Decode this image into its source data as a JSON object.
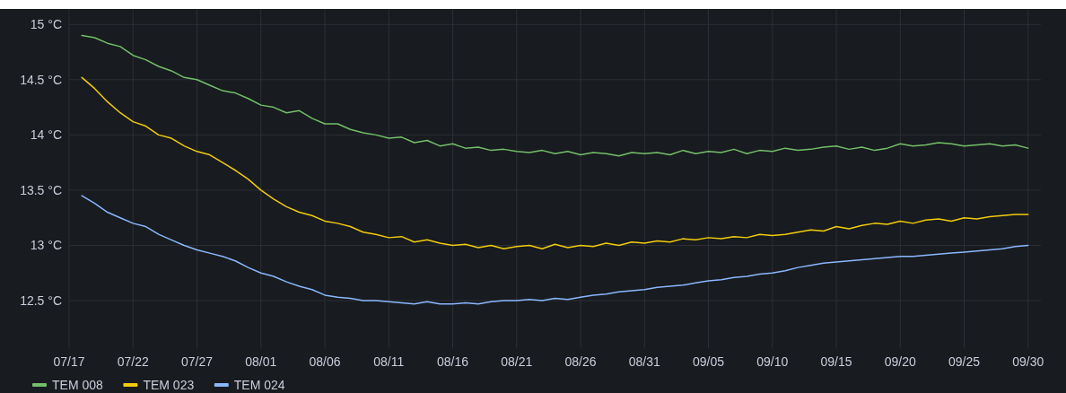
{
  "chart_data": {
    "type": "line",
    "x": [
      "--07-18",
      "--07-19",
      "--07-20",
      "--07-21",
      "--07-22",
      "--07-23",
      "--07-24",
      "--07-25",
      "--07-26",
      "--07-27",
      "--07-28",
      "--07-29",
      "--07-30",
      "--07-31",
      "--08-01",
      "--08-02",
      "--08-03",
      "--08-04",
      "--08-05",
      "--08-06",
      "--08-07",
      "--08-08",
      "--08-09",
      "--08-10",
      "--08-11",
      "--08-12",
      "--08-13",
      "--08-14",
      "--08-15",
      "--08-16",
      "--08-17",
      "--08-18",
      "--08-19",
      "--08-20",
      "--08-21",
      "--08-22",
      "--08-23",
      "--08-24",
      "--08-25",
      "--08-26",
      "--08-27",
      "--08-28",
      "--08-29",
      "--08-30",
      "--08-31",
      "--09-01",
      "--09-02",
      "--09-03",
      "--09-04",
      "--09-05",
      "--09-06",
      "--09-07",
      "--09-08",
      "--09-09",
      "--09-10",
      "--09-11",
      "--09-12",
      "--09-13",
      "--09-14",
      "--09-15",
      "--09-16",
      "--09-17",
      "--09-18",
      "--09-19",
      "--09-20",
      "--09-21",
      "--09-22",
      "--09-23",
      "--09-24",
      "--09-25",
      "--09-26",
      "--09-27",
      "--09-28",
      "--09-29",
      "--09-30"
    ],
    "series": [
      {
        "name": "TEM 008",
        "color": "#73bf69",
        "values": [
          14.9,
          14.88,
          14.83,
          14.8,
          14.72,
          14.68,
          14.62,
          14.58,
          14.52,
          14.5,
          14.45,
          14.4,
          14.38,
          14.33,
          14.27,
          14.25,
          14.2,
          14.22,
          14.15,
          14.1,
          14.1,
          14.05,
          14.02,
          14.0,
          13.97,
          13.98,
          13.93,
          13.95,
          13.9,
          13.92,
          13.88,
          13.89,
          13.86,
          13.87,
          13.85,
          13.84,
          13.86,
          13.83,
          13.85,
          13.82,
          13.84,
          13.83,
          13.81,
          13.84,
          13.83,
          13.84,
          13.82,
          13.86,
          13.83,
          13.85,
          13.84,
          13.87,
          13.83,
          13.86,
          13.85,
          13.88,
          13.86,
          13.87,
          13.89,
          13.9,
          13.87,
          13.89,
          13.86,
          13.88,
          13.92,
          13.9,
          13.91,
          13.93,
          13.92,
          13.9,
          13.91,
          13.92,
          13.9,
          13.91,
          13.88
        ]
      },
      {
        "name": "TEM 023",
        "color": "#f2cc0c",
        "values": [
          14.52,
          14.42,
          14.3,
          14.2,
          14.12,
          14.08,
          14.0,
          13.97,
          13.9,
          13.85,
          13.82,
          13.75,
          13.68,
          13.6,
          13.5,
          13.42,
          13.35,
          13.3,
          13.27,
          13.22,
          13.2,
          13.17,
          13.12,
          13.1,
          13.07,
          13.08,
          13.03,
          13.05,
          13.02,
          13.0,
          13.01,
          12.98,
          13.0,
          12.97,
          12.99,
          13.0,
          12.97,
          13.01,
          12.98,
          13.0,
          12.99,
          13.02,
          13.0,
          13.03,
          13.02,
          13.04,
          13.03,
          13.06,
          13.05,
          13.07,
          13.06,
          13.08,
          13.07,
          13.1,
          13.09,
          13.1,
          13.12,
          13.14,
          13.13,
          13.17,
          13.15,
          13.18,
          13.2,
          13.19,
          13.22,
          13.2,
          13.23,
          13.24,
          13.22,
          13.25,
          13.24,
          13.26,
          13.27,
          13.28,
          13.28
        ]
      },
      {
        "name": "TEM 024",
        "color": "#8ab8ff",
        "values": [
          13.45,
          13.38,
          13.3,
          13.25,
          13.2,
          13.17,
          13.1,
          13.05,
          13.0,
          12.96,
          12.93,
          12.9,
          12.86,
          12.8,
          12.75,
          12.72,
          12.67,
          12.63,
          12.6,
          12.55,
          12.53,
          12.52,
          12.5,
          12.5,
          12.49,
          12.48,
          12.47,
          12.49,
          12.47,
          12.47,
          12.48,
          12.47,
          12.49,
          12.5,
          12.5,
          12.51,
          12.5,
          12.52,
          12.51,
          12.53,
          12.55,
          12.56,
          12.58,
          12.59,
          12.6,
          12.62,
          12.63,
          12.64,
          12.66,
          12.68,
          12.69,
          12.71,
          12.72,
          12.74,
          12.75,
          12.77,
          12.8,
          12.82,
          12.84,
          12.85,
          12.86,
          12.87,
          12.88,
          12.89,
          12.9,
          12.9,
          12.91,
          12.92,
          12.93,
          12.94,
          12.95,
          12.96,
          12.97,
          12.99,
          13.0
        ]
      }
    ],
    "xlim": [
      "--07-17",
      "--10-01"
    ],
    "xticks": [
      {
        "value": "--07-17",
        "label": "07/17"
      },
      {
        "value": "--07-22",
        "label": "07/22"
      },
      {
        "value": "--07-27",
        "label": "07/27"
      },
      {
        "value": "--08-01",
        "label": "08/01"
      },
      {
        "value": "--08-06",
        "label": "08/06"
      },
      {
        "value": "--08-11",
        "label": "08/11"
      },
      {
        "value": "--08-16",
        "label": "08/16"
      },
      {
        "value": "--08-21",
        "label": "08/21"
      },
      {
        "value": "--08-26",
        "label": "08/26"
      },
      {
        "value": "--08-31",
        "label": "08/31"
      },
      {
        "value": "--09-05",
        "label": "09/05"
      },
      {
        "value": "--09-10",
        "label": "09/10"
      },
      {
        "value": "--09-15",
        "label": "09/15"
      },
      {
        "value": "--09-20",
        "label": "09/20"
      },
      {
        "value": "--09-25",
        "label": "09/25"
      },
      {
        "value": "--09-30",
        "label": "09/30"
      }
    ],
    "ylim": [
      12.07,
      15.14
    ],
    "yticks": [
      {
        "value": 12.5,
        "label": "12.5 °C"
      },
      {
        "value": 13,
        "label": "13 °C"
      },
      {
        "value": 13.5,
        "label": "13.5 °C"
      },
      {
        "value": 14,
        "label": "14 °C"
      },
      {
        "value": 14.5,
        "label": "14.5 °C"
      },
      {
        "value": 15,
        "label": "15 °C"
      }
    ],
    "grid": true,
    "legend": "bottom left",
    "marker": "none",
    "line_style": "solid"
  }
}
